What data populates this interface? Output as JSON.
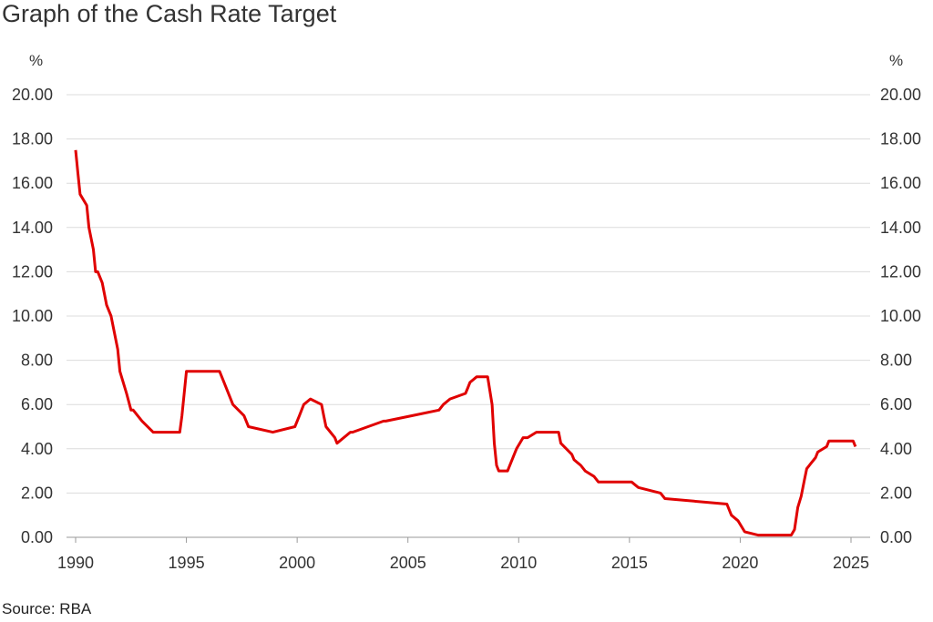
{
  "chart_data": {
    "type": "line",
    "title": "Graph of the Cash Rate Target",
    "source": "Source: RBA",
    "ylabel_left": "%",
    "ylabel_right": "%",
    "ylim": [
      0,
      20
    ],
    "yticks": [
      "0.00",
      "2.00",
      "4.00",
      "6.00",
      "8.00",
      "10.00",
      "12.00",
      "14.00",
      "16.00",
      "18.00",
      "20.00"
    ],
    "xlim": [
      1990,
      2025.5
    ],
    "xticks": [
      "1990",
      "1995",
      "2000",
      "2005",
      "2010",
      "2015",
      "2020",
      "2025"
    ],
    "grid": true,
    "line_color": "#e00000",
    "series": [
      {
        "x": [
          1990.0,
          1990.05,
          1990.1,
          1990.2,
          1990.5,
          1990.6,
          1990.8,
          1990.9,
          1991.0,
          1991.2,
          1991.4,
          1991.6,
          1991.7,
          1991.9,
          1992.0,
          1992.3,
          1992.5,
          1992.6,
          1993.0,
          1993.5,
          1993.6,
          1994.7,
          1994.8,
          1995.0,
          1996.5,
          1996.7,
          1997.1,
          1997.6,
          1997.8,
          1998.9,
          1999.9,
          2000.1,
          2000.3,
          2000.6,
          2001.1,
          2001.2,
          2001.3,
          2001.7,
          2001.8,
          2002.4,
          2002.5,
          2003.9,
          2004.0,
          2005.2,
          2006.4,
          2006.6,
          2006.9,
          2007.6,
          2007.7,
          2007.8,
          2008.1,
          2008.6,
          2008.8,
          2008.9,
          2009.0,
          2009.1,
          2009.5,
          2009.8,
          2009.9,
          2010.2,
          2010.4,
          2010.8,
          2011.8,
          2011.9,
          2012.4,
          2012.5,
          2012.8,
          2013.0,
          2013.4,
          2013.6,
          2015.1,
          2015.4,
          2016.4,
          2016.6,
          2019.4,
          2019.6,
          2019.9,
          2020.2,
          2020.8,
          2022.3,
          2022.45,
          2022.6,
          2022.75,
          2022.9,
          2023.0,
          2023.2,
          2023.4,
          2023.5,
          2023.9,
          2024.0,
          2025.1,
          2025.2
        ],
        "y": [
          17.5,
          17.0,
          16.5,
          15.5,
          15.0,
          14.0,
          13.0,
          12.0,
          12.0,
          11.5,
          10.5,
          10.0,
          9.5,
          8.5,
          7.5,
          6.5,
          5.75,
          5.75,
          5.25,
          4.75,
          4.75,
          4.75,
          5.5,
          7.5,
          7.5,
          7.0,
          6.0,
          5.5,
          5.0,
          4.75,
          5.0,
          5.5,
          6.0,
          6.25,
          6.0,
          5.5,
          5.0,
          4.5,
          4.25,
          4.75,
          4.75,
          5.25,
          5.25,
          5.5,
          5.75,
          6.0,
          6.25,
          6.5,
          6.75,
          7.0,
          7.25,
          7.25,
          6.0,
          4.25,
          3.25,
          3.0,
          3.0,
          3.75,
          4.0,
          4.5,
          4.5,
          4.75,
          4.75,
          4.25,
          3.75,
          3.5,
          3.25,
          3.0,
          2.75,
          2.5,
          2.5,
          2.25,
          2.0,
          1.75,
          1.5,
          1.0,
          0.75,
          0.25,
          0.1,
          0.1,
          0.35,
          1.35,
          1.85,
          2.6,
          3.1,
          3.35,
          3.6,
          3.85,
          4.1,
          4.35,
          4.35,
          4.1
        ]
      }
    ]
  }
}
